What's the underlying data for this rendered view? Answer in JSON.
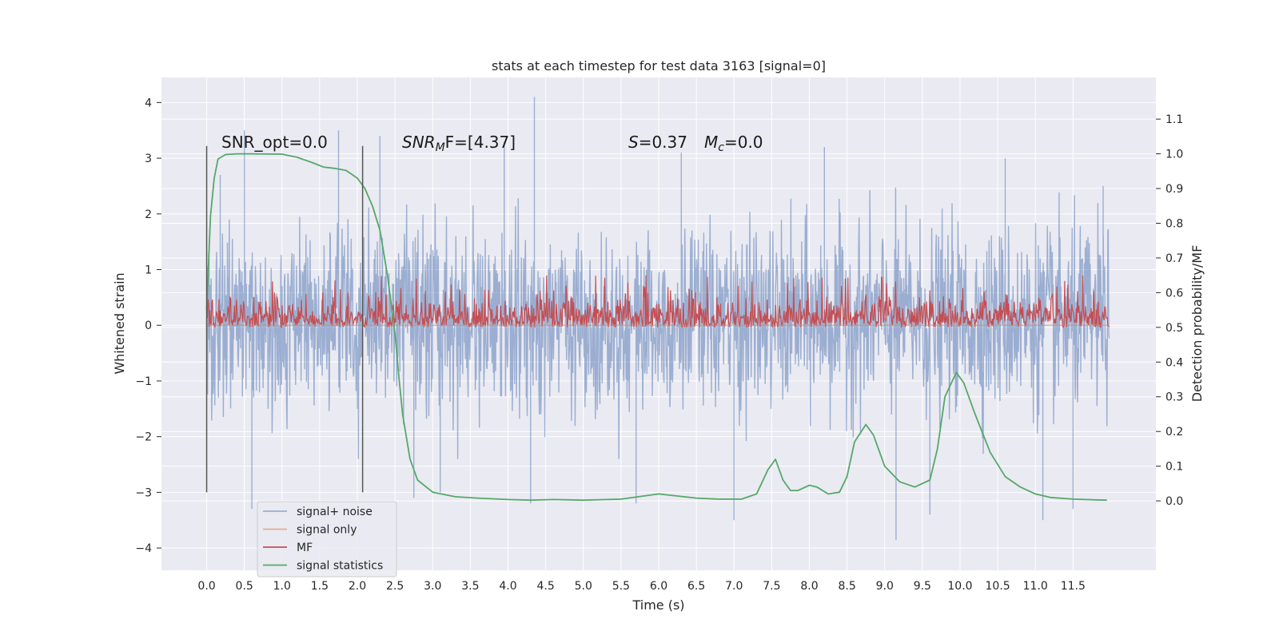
{
  "chart_data": {
    "type": "line",
    "title": "stats at each timestep for test data 3163 [signal=0]",
    "xlabel": "Time (s)",
    "ylabel": "Whitened strain",
    "y2label": "Detection probability/MF",
    "xlim": [
      -0.6,
      12.6
    ],
    "ylim": [
      -4.4,
      4.45
    ],
    "y2lim": [
      -0.2,
      1.22
    ],
    "x_ticks": [
      "0.0",
      "0.5",
      "1.0",
      "1.5",
      "2.0",
      "2.5",
      "3.0",
      "3.5",
      "4.0",
      "4.5",
      "5.0",
      "5.5",
      "6.0",
      "6.5",
      "7.0",
      "7.5",
      "8.0",
      "8.5",
      "9.0",
      "9.5",
      "10.0",
      "10.5",
      "11.0",
      "11.5"
    ],
    "y_ticks": [
      "4",
      "3",
      "2",
      "1",
      "0",
      "−1",
      "−2",
      "−3",
      "−4"
    ],
    "y2_ticks": [
      "1.1",
      "1.0",
      "0.9",
      "0.8",
      "0.7",
      "0.6",
      "0.5",
      "0.4",
      "0.3",
      "0.2",
      "0.1",
      "0.0"
    ],
    "grid": true,
    "legend_position": "lower-left",
    "colors": {
      "background": "#eaeaf2",
      "grid": "#ffffff",
      "noise": "#4c72b0",
      "signal_only": "#dd8452",
      "mf": "#c44e52",
      "statistics": "#55a868",
      "markers": "#555555"
    },
    "annotations": {
      "snr_opt": "SNR_opt=0.0",
      "snr_mf_main": "SNR",
      "snr_mf_sub": "M",
      "snr_mf_tail": "F=[4.37]",
      "s_main": "S",
      "s_value": "=0.37",
      "mc_main": "M",
      "mc_sub": "c",
      "mc_value": "=0.0"
    },
    "vertical_markers": [
      0.0,
      2.07
    ],
    "series": [
      {
        "name": "signal+ noise",
        "key": "noise",
        "x_range": [
          0.0,
          11.98
        ],
        "typical_range": [
          -1.8,
          2.0
        ],
        "extremes": [
          {
            "x": 0.18,
            "y": 2.7
          },
          {
            "x": 0.5,
            "y": 3.5
          },
          {
            "x": 0.6,
            "y": -3.3
          },
          {
            "x": 1.75,
            "y": 3.5
          },
          {
            "x": 2.3,
            "y": 3.4
          },
          {
            "x": 2.75,
            "y": -3.1
          },
          {
            "x": 3.1,
            "y": -3.0
          },
          {
            "x": 3.95,
            "y": 3.3
          },
          {
            "x": 4.35,
            "y": 4.1
          },
          {
            "x": 4.3,
            "y": -3.2
          },
          {
            "x": 5.7,
            "y": -3.2
          },
          {
            "x": 6.3,
            "y": 3.1
          },
          {
            "x": 7.0,
            "y": -3.5
          },
          {
            "x": 8.2,
            "y": 3.2
          },
          {
            "x": 9.15,
            "y": -3.85
          },
          {
            "x": 9.6,
            "y": -3.4
          },
          {
            "x": 10.6,
            "y": 3.0
          },
          {
            "x": 11.1,
            "y": -3.5
          },
          {
            "x": 11.5,
            "y": -3.3
          },
          {
            "x": 11.9,
            "y": 2.5
          }
        ]
      },
      {
        "name": "signal only",
        "key": "signal_only",
        "x": [
          0.0,
          11.98
        ],
        "y": [
          0.0,
          0.0
        ]
      },
      {
        "name": "MF",
        "key": "mf",
        "axis": "right",
        "x_range": [
          0.0,
          11.98
        ],
        "typical_range": [
          0.5,
          0.6
        ],
        "max": 0.65
      },
      {
        "name": "signal statistics",
        "key": "statistics",
        "axis": "right",
        "x": [
          0.0,
          0.05,
          0.1,
          0.15,
          0.25,
          0.4,
          0.6,
          1.0,
          1.2,
          1.4,
          1.55,
          1.7,
          1.85,
          2.0,
          2.1,
          2.2,
          2.3,
          2.4,
          2.5,
          2.55,
          2.6,
          2.7,
          2.8,
          3.0,
          3.3,
          3.6,
          4.0,
          4.3,
          4.6,
          5.0,
          5.5,
          6.0,
          6.5,
          6.8,
          7.1,
          7.3,
          7.45,
          7.55,
          7.65,
          7.75,
          7.85,
          8.0,
          8.1,
          8.25,
          8.4,
          8.5,
          8.6,
          8.75,
          8.85,
          9.0,
          9.2,
          9.4,
          9.6,
          9.7,
          9.8,
          9.95,
          10.05,
          10.2,
          10.4,
          10.6,
          10.8,
          11.0,
          11.2,
          11.5,
          11.8,
          11.95
        ],
        "y": [
          0.55,
          0.82,
          0.93,
          0.985,
          0.998,
          1.0,
          1.0,
          0.999,
          0.99,
          0.975,
          0.962,
          0.958,
          0.952,
          0.93,
          0.9,
          0.85,
          0.78,
          0.65,
          0.48,
          0.36,
          0.25,
          0.12,
          0.06,
          0.025,
          0.012,
          0.008,
          0.004,
          0.002,
          0.004,
          0.002,
          0.005,
          0.02,
          0.008,
          0.005,
          0.005,
          0.02,
          0.09,
          0.12,
          0.06,
          0.03,
          0.03,
          0.045,
          0.04,
          0.02,
          0.025,
          0.07,
          0.17,
          0.22,
          0.19,
          0.1,
          0.055,
          0.04,
          0.06,
          0.15,
          0.3,
          0.37,
          0.34,
          0.25,
          0.14,
          0.07,
          0.04,
          0.02,
          0.01,
          0.005,
          0.003,
          0.002
        ]
      }
    ]
  }
}
